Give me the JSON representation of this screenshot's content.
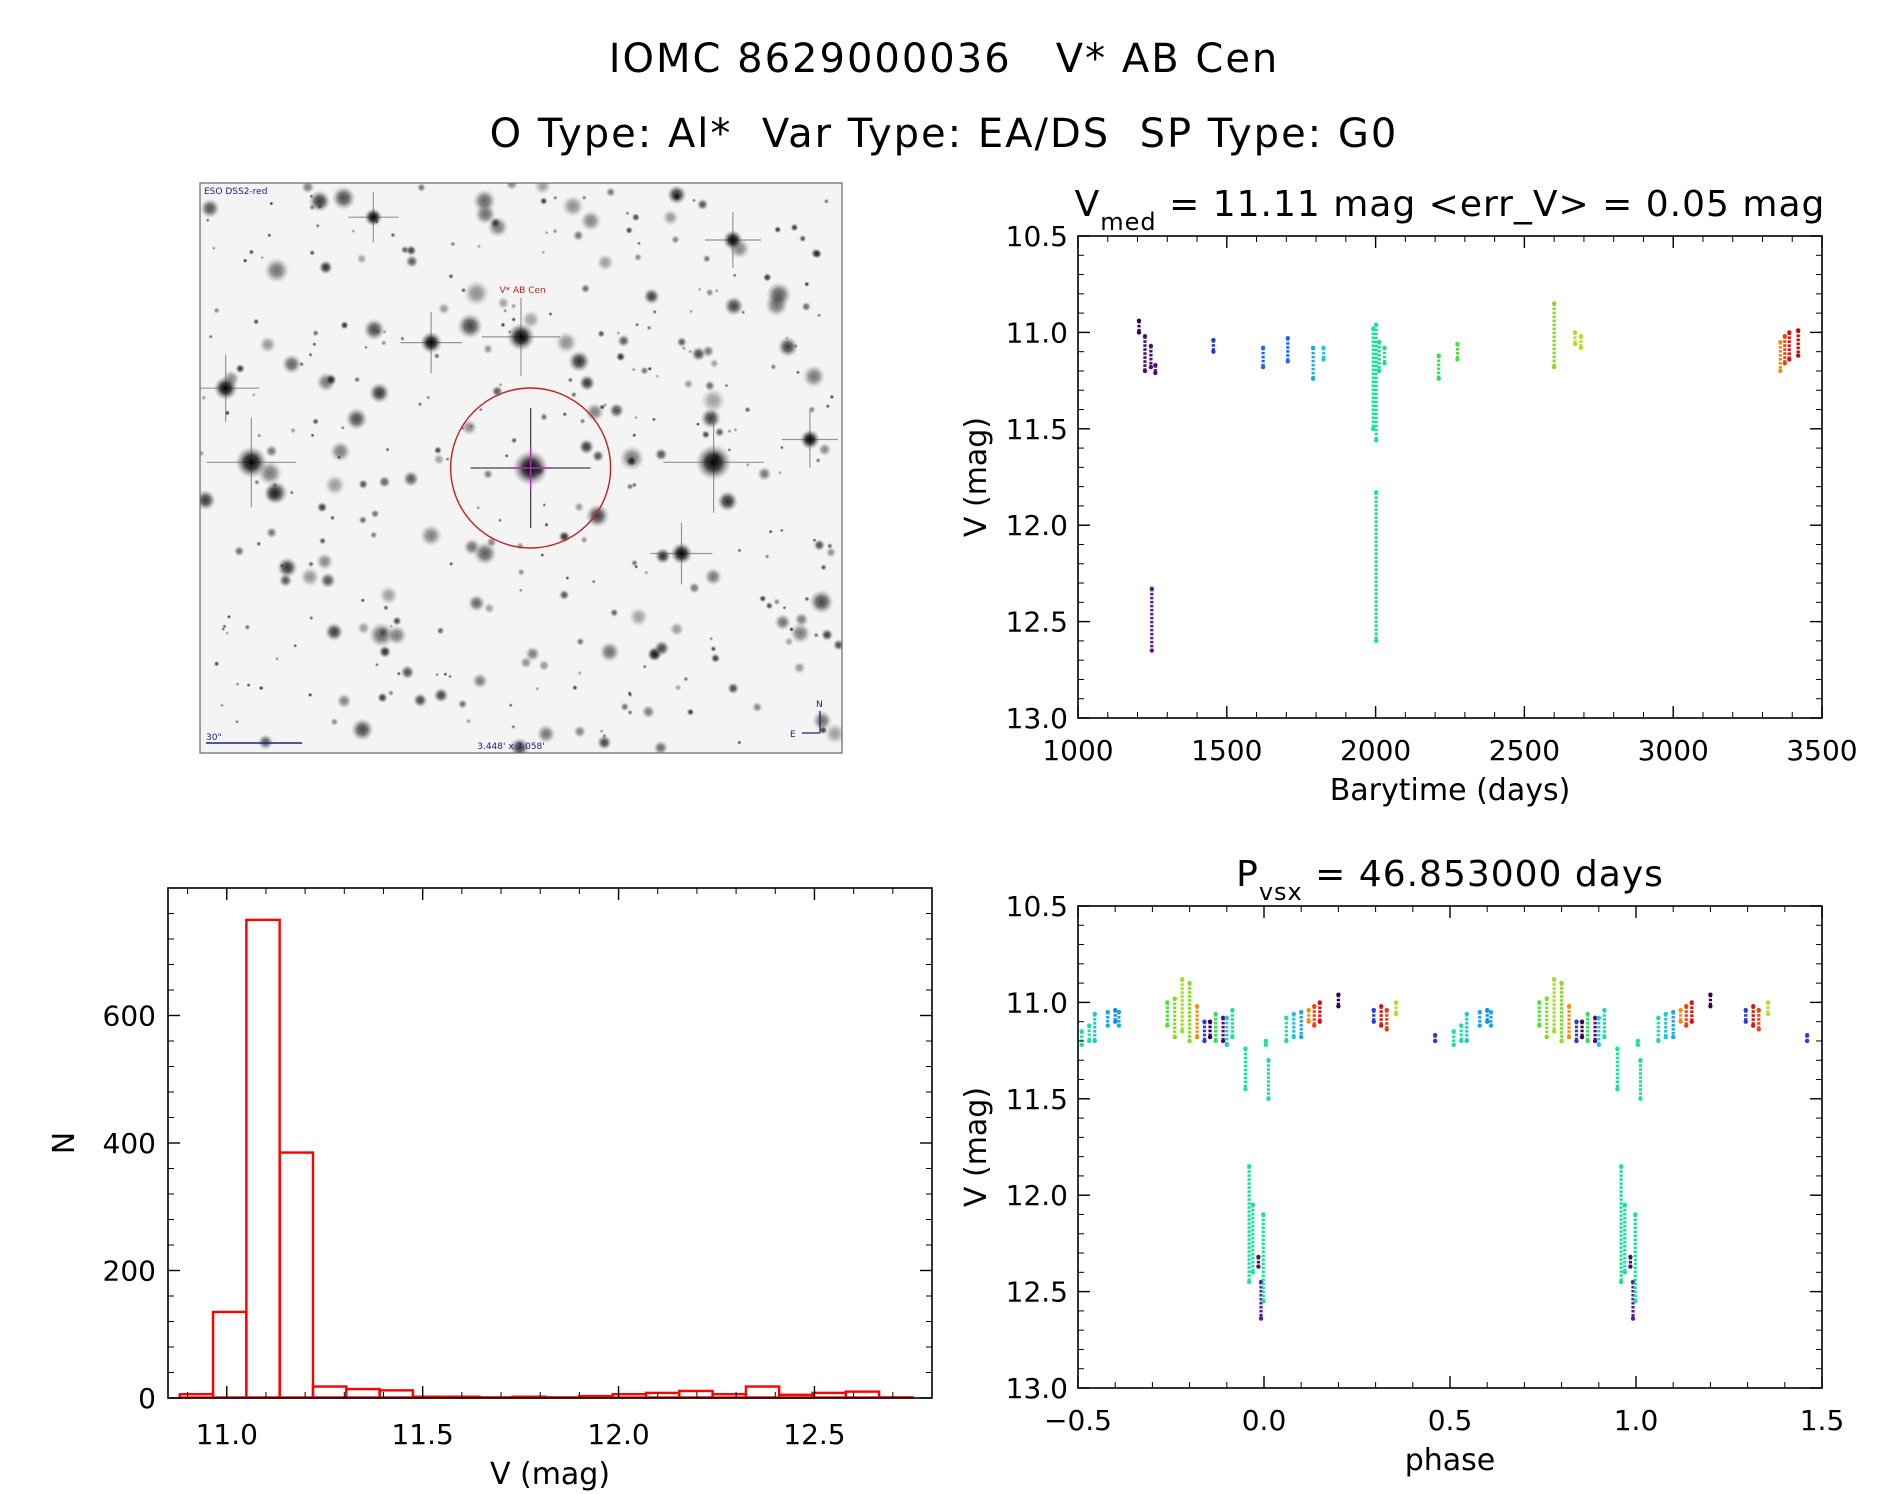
{
  "header": {
    "title_line1": "IOMC 8629000036   V* AB Cen",
    "title_line2": "O Type: Al*  Var Type: EA/DS  SP Type: G0"
  },
  "finder_image": {
    "survey_label": "ESO DSS2-red",
    "target_label": "V* AB Cen",
    "scale_label": "30\"",
    "fov_label": "3.448' x 3.058'",
    "north_label": "N",
    "east_label": "E"
  },
  "chart_data": [
    {
      "type": "scatter",
      "id": "lightcurve",
      "title": "V_med = 11.11 mag <err_V> = 0.05 mag",
      "title_parts": {
        "main": "V",
        "sub": "med",
        "rest": " = 11.11 mag <err_V> = 0.05 mag"
      },
      "xlabel": "Barytime (days)",
      "ylabel": "V (mag)",
      "xlim": [
        1000,
        3500
      ],
      "ylim": [
        13.0,
        10.5
      ],
      "y_inverted": true,
      "xticks": [
        "1000",
        "1500",
        "2000",
        "2500",
        "3000",
        "3500"
      ],
      "yticks": [
        "10.5",
        "11.0",
        "11.5",
        "12.0",
        "12.5",
        "13.0"
      ],
      "groups": [
        {
          "x": 1205,
          "ymin": 10.94,
          "ymax": 11.0,
          "color": "#3a0050"
        },
        {
          "x": 1225,
          "ymin": 11.02,
          "ymax": 11.2,
          "color": "#4a1070"
        },
        {
          "x": 1245,
          "ymin": 11.07,
          "ymax": 11.18,
          "color": "#4a1070"
        },
        {
          "x": 1260,
          "ymin": 11.17,
          "ymax": 11.21,
          "color": "#4a1070"
        },
        {
          "x": 1248,
          "ymin": 12.33,
          "ymax": 12.65,
          "color": "#5a1a9a"
        },
        {
          "x": 1455,
          "ymin": 11.04,
          "ymax": 11.1,
          "color": "#2a3ad8"
        },
        {
          "x": 1622,
          "ymin": 11.08,
          "ymax": 11.18,
          "color": "#1a6ae8"
        },
        {
          "x": 1705,
          "ymin": 11.03,
          "ymax": 11.15,
          "color": "#1a6ae8"
        },
        {
          "x": 1790,
          "ymin": 11.08,
          "ymax": 11.24,
          "color": "#1aaae0"
        },
        {
          "x": 1825,
          "ymin": 11.08,
          "ymax": 11.14,
          "color": "#1ac8e0"
        },
        {
          "x": 1992,
          "ymin": 10.98,
          "ymax": 11.5,
          "color": "#1ae0a0"
        },
        {
          "x": 2002,
          "ymin": 10.96,
          "ymax": 11.56,
          "color": "#1ae0a0"
        },
        {
          "x": 2012,
          "ymin": 11.05,
          "ymax": 11.2,
          "color": "#1ae090"
        },
        {
          "x": 2030,
          "ymin": 11.08,
          "ymax": 11.16,
          "color": "#1ae090"
        },
        {
          "x": 2002,
          "ymin": 11.83,
          "ymax": 12.6,
          "color": "#1ae0a0"
        },
        {
          "x": 2212,
          "ymin": 11.12,
          "ymax": 11.24,
          "color": "#30e060"
        },
        {
          "x": 2275,
          "ymin": 11.06,
          "ymax": 11.14,
          "color": "#50e040"
        },
        {
          "x": 2600,
          "ymin": 10.85,
          "ymax": 11.18,
          "color": "#80e020"
        },
        {
          "x": 2670,
          "ymin": 11.0,
          "ymax": 11.06,
          "color": "#b0e020"
        },
        {
          "x": 2690,
          "ymin": 11.02,
          "ymax": 11.08,
          "color": "#b0e020"
        },
        {
          "x": 3360,
          "ymin": 11.05,
          "ymax": 11.2,
          "color": "#f09010"
        },
        {
          "x": 3375,
          "ymin": 11.02,
          "ymax": 11.16,
          "color": "#f04010"
        },
        {
          "x": 3390,
          "ymin": 11.0,
          "ymax": 11.14,
          "color": "#e01010"
        },
        {
          "x": 3420,
          "ymin": 10.99,
          "ymax": 11.12,
          "color": "#d00000"
        }
      ]
    },
    {
      "type": "scatter",
      "id": "phased",
      "title": "P_vsx = 46.853000 days",
      "title_parts": {
        "main": "P",
        "sub": "vsx",
        "rest": " = 46.853000 days"
      },
      "xlabel": "phase",
      "ylabel": "V (mag)",
      "xlim": [
        -0.5,
        1.5
      ],
      "ylim": [
        13.0,
        10.5
      ],
      "y_inverted": true,
      "xticks": [
        "−0.5",
        "0.0",
        "0.5",
        "1.0",
        "1.5"
      ],
      "yticks": [
        "10.5",
        "11.0",
        "11.5",
        "12.0",
        "12.5",
        "13.0"
      ],
      "groups": [
        {
          "x": -0.49,
          "ymin": 11.15,
          "ymax": 11.22,
          "color": "#1ae0a0"
        },
        {
          "x": -0.47,
          "ymin": 11.12,
          "ymax": 11.2,
          "color": "#1ae0a0"
        },
        {
          "x": -0.455,
          "ymin": 11.06,
          "ymax": 11.2,
          "color": "#1ac8e0"
        },
        {
          "x": -0.42,
          "ymin": 11.05,
          "ymax": 11.12,
          "color": "#1aaae0"
        },
        {
          "x": -0.4,
          "ymin": 11.04,
          "ymax": 11.1,
          "color": "#1a8ae8"
        },
        {
          "x": -0.39,
          "ymin": 11.05,
          "ymax": 11.12,
          "color": "#1aaae0"
        },
        {
          "x": -0.26,
          "ymin": 11.0,
          "ymax": 11.12,
          "color": "#50e040"
        },
        {
          "x": -0.24,
          "ymin": 10.98,
          "ymax": 11.18,
          "color": "#80e020"
        },
        {
          "x": -0.22,
          "ymin": 10.88,
          "ymax": 11.15,
          "color": "#a0e020"
        },
        {
          "x": -0.2,
          "ymin": 10.9,
          "ymax": 11.2,
          "color": "#80e020"
        },
        {
          "x": -0.18,
          "ymin": 11.02,
          "ymax": 11.18,
          "color": "#f09010"
        },
        {
          "x": -0.16,
          "ymin": 11.1,
          "ymax": 11.2,
          "color": "#2a3ad8"
        },
        {
          "x": -0.145,
          "ymin": 11.1,
          "ymax": 11.18,
          "color": "#3a0050"
        },
        {
          "x": -0.13,
          "ymin": 11.06,
          "ymax": 11.2,
          "color": "#30e060"
        },
        {
          "x": -0.11,
          "ymin": 11.08,
          "ymax": 11.2,
          "color": "#4a1070"
        },
        {
          "x": -0.1,
          "ymin": 11.08,
          "ymax": 11.22,
          "color": "#1ac8e0"
        },
        {
          "x": -0.085,
          "ymin": 11.04,
          "ymax": 11.18,
          "color": "#1ae0a0"
        },
        {
          "x": -0.05,
          "ymin": 11.24,
          "ymax": 11.45,
          "color": "#1ae0a0"
        },
        {
          "x": -0.04,
          "ymin": 11.85,
          "ymax": 12.45,
          "color": "#1ae0a0"
        },
        {
          "x": -0.03,
          "ymin": 12.05,
          "ymax": 12.4,
          "color": "#1ae0a0"
        },
        {
          "x": -0.015,
          "ymin": 12.32,
          "ymax": 12.37,
          "color": "#4a1070"
        },
        {
          "x": -0.008,
          "ymin": 12.45,
          "ymax": 12.64,
          "color": "#5a1a9a"
        },
        {
          "x": -0.002,
          "ymin": 12.1,
          "ymax": 12.55,
          "color": "#1ae0a0"
        },
        {
          "x": 0.005,
          "ymin": 11.2,
          "ymax": 11.22,
          "color": "#1ae0a0"
        },
        {
          "x": 0.012,
          "ymin": 11.3,
          "ymax": 11.5,
          "color": "#1ae0a0"
        },
        {
          "x": 0.06,
          "ymin": 11.08,
          "ymax": 11.2,
          "color": "#1ae0a0"
        },
        {
          "x": 0.08,
          "ymin": 11.06,
          "ymax": 11.18,
          "color": "#1ac8e0"
        },
        {
          "x": 0.1,
          "ymin": 11.05,
          "ymax": 11.18,
          "color": "#1aaae0"
        },
        {
          "x": 0.12,
          "ymin": 11.04,
          "ymax": 11.1,
          "color": "#f09010"
        },
        {
          "x": 0.135,
          "ymin": 11.02,
          "ymax": 11.12,
          "color": "#f04010"
        },
        {
          "x": 0.15,
          "ymin": 11.0,
          "ymax": 11.1,
          "color": "#e01010"
        },
        {
          "x": 0.2,
          "ymin": 10.96,
          "ymax": 11.02,
          "color": "#3a0050"
        },
        {
          "x": 0.295,
          "ymin": 11.04,
          "ymax": 11.1,
          "color": "#2a3ad8"
        },
        {
          "x": 0.315,
          "ymin": 11.02,
          "ymax": 11.12,
          "color": "#e01010"
        },
        {
          "x": 0.33,
          "ymin": 11.04,
          "ymax": 11.14,
          "color": "#f04010"
        },
        {
          "x": 0.355,
          "ymin": 11.0,
          "ymax": 11.06,
          "color": "#b0e020"
        },
        {
          "x": 0.46,
          "ymin": 11.17,
          "ymax": 11.2,
          "color": "#2a3ad8"
        },
        {
          "x": 0.51,
          "ymin": 11.15,
          "ymax": 11.22,
          "color": "#1ae0a0"
        },
        {
          "x": 0.53,
          "ymin": 11.12,
          "ymax": 11.2,
          "color": "#1ae0a0"
        },
        {
          "x": 0.545,
          "ymin": 11.06,
          "ymax": 11.2,
          "color": "#1ac8e0"
        },
        {
          "x": 0.58,
          "ymin": 11.05,
          "ymax": 11.12,
          "color": "#1aaae0"
        },
        {
          "x": 0.6,
          "ymin": 11.04,
          "ymax": 11.1,
          "color": "#1a8ae8"
        },
        {
          "x": 0.61,
          "ymin": 11.05,
          "ymax": 11.12,
          "color": "#1aaae0"
        },
        {
          "x": 0.74,
          "ymin": 11.0,
          "ymax": 11.12,
          "color": "#50e040"
        },
        {
          "x": 0.76,
          "ymin": 10.98,
          "ymax": 11.18,
          "color": "#80e020"
        },
        {
          "x": 0.78,
          "ymin": 10.88,
          "ymax": 11.15,
          "color": "#a0e020"
        },
        {
          "x": 0.8,
          "ymin": 10.9,
          "ymax": 11.2,
          "color": "#80e020"
        },
        {
          "x": 0.82,
          "ymin": 11.02,
          "ymax": 11.18,
          "color": "#f09010"
        },
        {
          "x": 0.84,
          "ymin": 11.1,
          "ymax": 11.2,
          "color": "#2a3ad8"
        },
        {
          "x": 0.855,
          "ymin": 11.1,
          "ymax": 11.18,
          "color": "#3a0050"
        },
        {
          "x": 0.87,
          "ymin": 11.06,
          "ymax": 11.2,
          "color": "#30e060"
        },
        {
          "x": 0.89,
          "ymin": 11.08,
          "ymax": 11.2,
          "color": "#4a1070"
        },
        {
          "x": 0.9,
          "ymin": 11.08,
          "ymax": 11.22,
          "color": "#1ac8e0"
        },
        {
          "x": 0.915,
          "ymin": 11.04,
          "ymax": 11.18,
          "color": "#1ae0a0"
        },
        {
          "x": 0.95,
          "ymin": 11.24,
          "ymax": 11.45,
          "color": "#1ae0a0"
        },
        {
          "x": 0.96,
          "ymin": 11.85,
          "ymax": 12.45,
          "color": "#1ae0a0"
        },
        {
          "x": 0.97,
          "ymin": 12.05,
          "ymax": 12.4,
          "color": "#1ae0a0"
        },
        {
          "x": 0.985,
          "ymin": 12.32,
          "ymax": 12.37,
          "color": "#4a1070"
        },
        {
          "x": 0.992,
          "ymin": 12.45,
          "ymax": 12.64,
          "color": "#5a1a9a"
        },
        {
          "x": 0.998,
          "ymin": 12.1,
          "ymax": 12.55,
          "color": "#1ae0a0"
        },
        {
          "x": 1.005,
          "ymin": 11.2,
          "ymax": 11.22,
          "color": "#1ae0a0"
        },
        {
          "x": 1.012,
          "ymin": 11.3,
          "ymax": 11.5,
          "color": "#1ae0a0"
        },
        {
          "x": 1.06,
          "ymin": 11.08,
          "ymax": 11.2,
          "color": "#1ae0a0"
        },
        {
          "x": 1.08,
          "ymin": 11.06,
          "ymax": 11.18,
          "color": "#1ac8e0"
        },
        {
          "x": 1.1,
          "ymin": 11.05,
          "ymax": 11.18,
          "color": "#1aaae0"
        },
        {
          "x": 1.12,
          "ymin": 11.04,
          "ymax": 11.1,
          "color": "#f09010"
        },
        {
          "x": 1.135,
          "ymin": 11.02,
          "ymax": 11.12,
          "color": "#f04010"
        },
        {
          "x": 1.15,
          "ymin": 11.0,
          "ymax": 11.1,
          "color": "#e01010"
        },
        {
          "x": 1.2,
          "ymin": 10.96,
          "ymax": 11.02,
          "color": "#3a0050"
        },
        {
          "x": 1.295,
          "ymin": 11.04,
          "ymax": 11.1,
          "color": "#2a3ad8"
        },
        {
          "x": 1.315,
          "ymin": 11.02,
          "ymax": 11.12,
          "color": "#e01010"
        },
        {
          "x": 1.33,
          "ymin": 11.04,
          "ymax": 11.14,
          "color": "#f04010"
        },
        {
          "x": 1.355,
          "ymin": 11.0,
          "ymax": 11.06,
          "color": "#b0e020"
        },
        {
          "x": 1.46,
          "ymin": 11.17,
          "ymax": 11.2,
          "color": "#2a3ad8"
        }
      ]
    },
    {
      "type": "bar",
      "id": "histogram",
      "title": "",
      "xlabel": "V (mag)",
      "ylabel": "N",
      "xlim": [
        10.85,
        12.8
      ],
      "ylim": [
        0,
        800
      ],
      "xticks": [
        "11.0",
        "11.5",
        "12.0",
        "12.5"
      ],
      "yticks": [
        "0",
        "200",
        "400",
        "600"
      ],
      "bin_width": 0.085,
      "bin_start": 10.88,
      "bar_color": "#ff0000",
      "values": [
        6,
        135,
        750,
        385,
        18,
        14,
        12,
        2,
        2,
        1,
        2,
        1,
        3,
        6,
        8,
        11,
        6,
        18,
        5,
        8,
        10,
        1
      ]
    }
  ]
}
